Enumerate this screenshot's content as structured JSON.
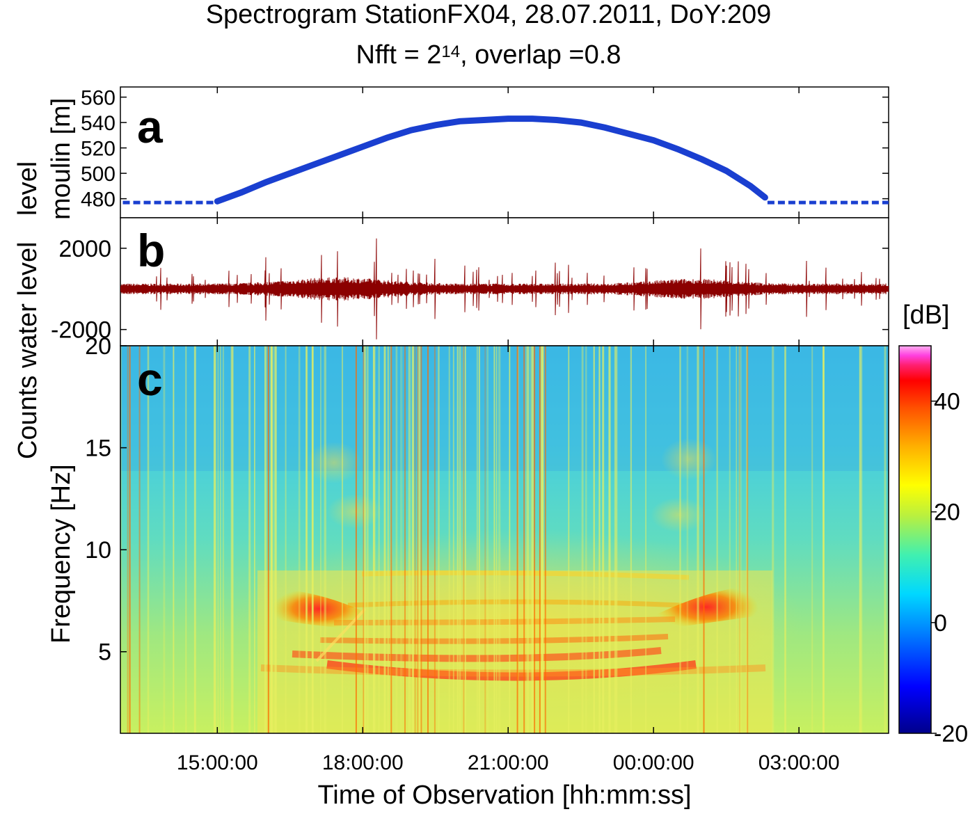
{
  "title_line1": "Spectrogram StationFX04, 28.07.2011, DoY:209",
  "title_line2_prefix": "Nfft = 2",
  "title_line2_exp": "14",
  "title_line2_suffix": ", overlap =0.8",
  "colors": {
    "water_level": "#1a3fd0",
    "seismogram": "#8b0000"
  },
  "chart_data": [
    {
      "type": "line",
      "panel_label": "a",
      "ylabel": "moulin [m]",
      "ylabel_line1": "level",
      "ylim": [
        465,
        568
      ],
      "yticks": [
        480,
        500,
        520,
        540,
        560
      ],
      "xlim_hours": [
        13.0,
        28.85
      ],
      "series": [
        {
          "style": "dashed",
          "x_hours": [
            13.05,
            14.95
          ],
          "values": [
            477,
            477
          ]
        },
        {
          "style": "solid",
          "x_hours": [
            15.0,
            15.5,
            16.0,
            16.5,
            17.0,
            17.5,
            18.0,
            18.5,
            19.0,
            19.5,
            20.0,
            20.5,
            21.0,
            21.5,
            22.0,
            22.5,
            23.0,
            23.5,
            24.0,
            24.5,
            25.0,
            25.5,
            26.0,
            26.3
          ],
          "values": [
            478,
            485,
            493,
            500,
            507,
            514,
            521,
            528,
            534,
            538,
            541,
            542,
            543,
            543,
            542,
            540,
            536,
            531,
            526,
            519,
            511,
            502,
            490,
            481
          ]
        },
        {
          "style": "dashed",
          "x_hours": [
            26.35,
            28.85
          ],
          "values": [
            477,
            477
          ]
        }
      ]
    },
    {
      "type": "line",
      "panel_label": "b",
      "ylabel": "Counts water level",
      "ylim": [
        -2800,
        3500
      ],
      "yticks": [
        2000,
        -2000
      ],
      "xlim_hours": [
        13.0,
        28.85
      ]
    },
    {
      "type": "heatmap",
      "panel_label": "c",
      "ylabel": "Frequency [Hz]",
      "xlabel": "Time of Observation [hh:mm:ss]",
      "ylim": [
        1,
        20
      ],
      "yticks": [
        20,
        15,
        10,
        5
      ],
      "xlim_hours": [
        13.0,
        28.85
      ],
      "xticks_hours": [
        15,
        18,
        21,
        24,
        27
      ],
      "xtick_labels": [
        "15:00:00",
        "18:00:00",
        "21:00:00",
        "00:00:00",
        "03:00:00"
      ],
      "colorbar": {
        "unit": "[dB]",
        "range": [
          -20,
          50
        ],
        "ticks": [
          40,
          20,
          0,
          -20
        ]
      }
    }
  ]
}
